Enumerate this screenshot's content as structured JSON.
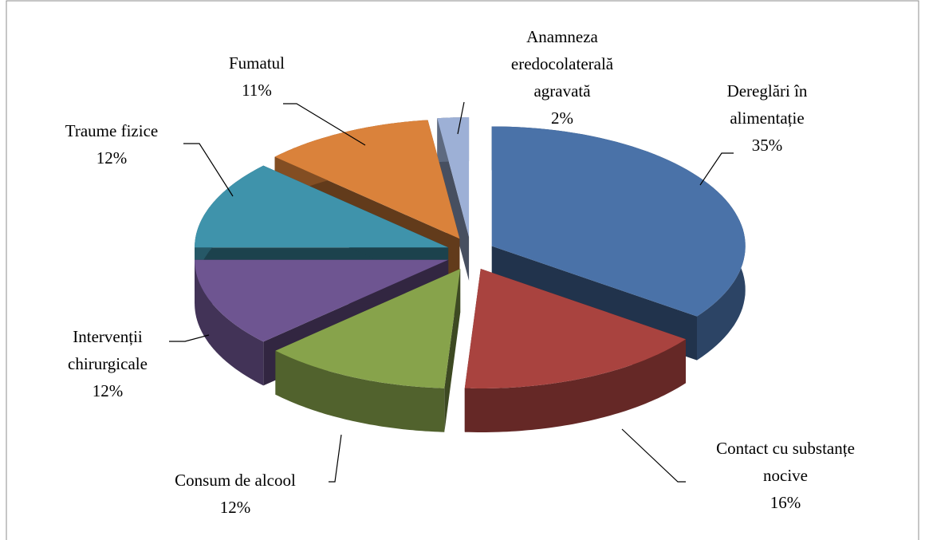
{
  "chart_data": {
    "type": "pie",
    "categories": [
      "Dereglări în alimentație",
      "Contact cu substanțe nocive",
      "Consum de alcool",
      "Intervenții chirurgicale",
      "Traume fizice",
      "Fumatul",
      "Anamneza eredocolaterală agravată"
    ],
    "values": [
      35,
      16,
      12,
      12,
      12,
      11,
      2
    ],
    "value_labels": [
      "35%",
      "16%",
      "12%",
      "12%",
      "12%",
      "11%",
      "2%"
    ],
    "colors": [
      "#4a72a8",
      "#a9433f",
      "#87a34b",
      "#6e5591",
      "#3f93ab",
      "#da823b",
      "#9db0d6"
    ]
  }
}
